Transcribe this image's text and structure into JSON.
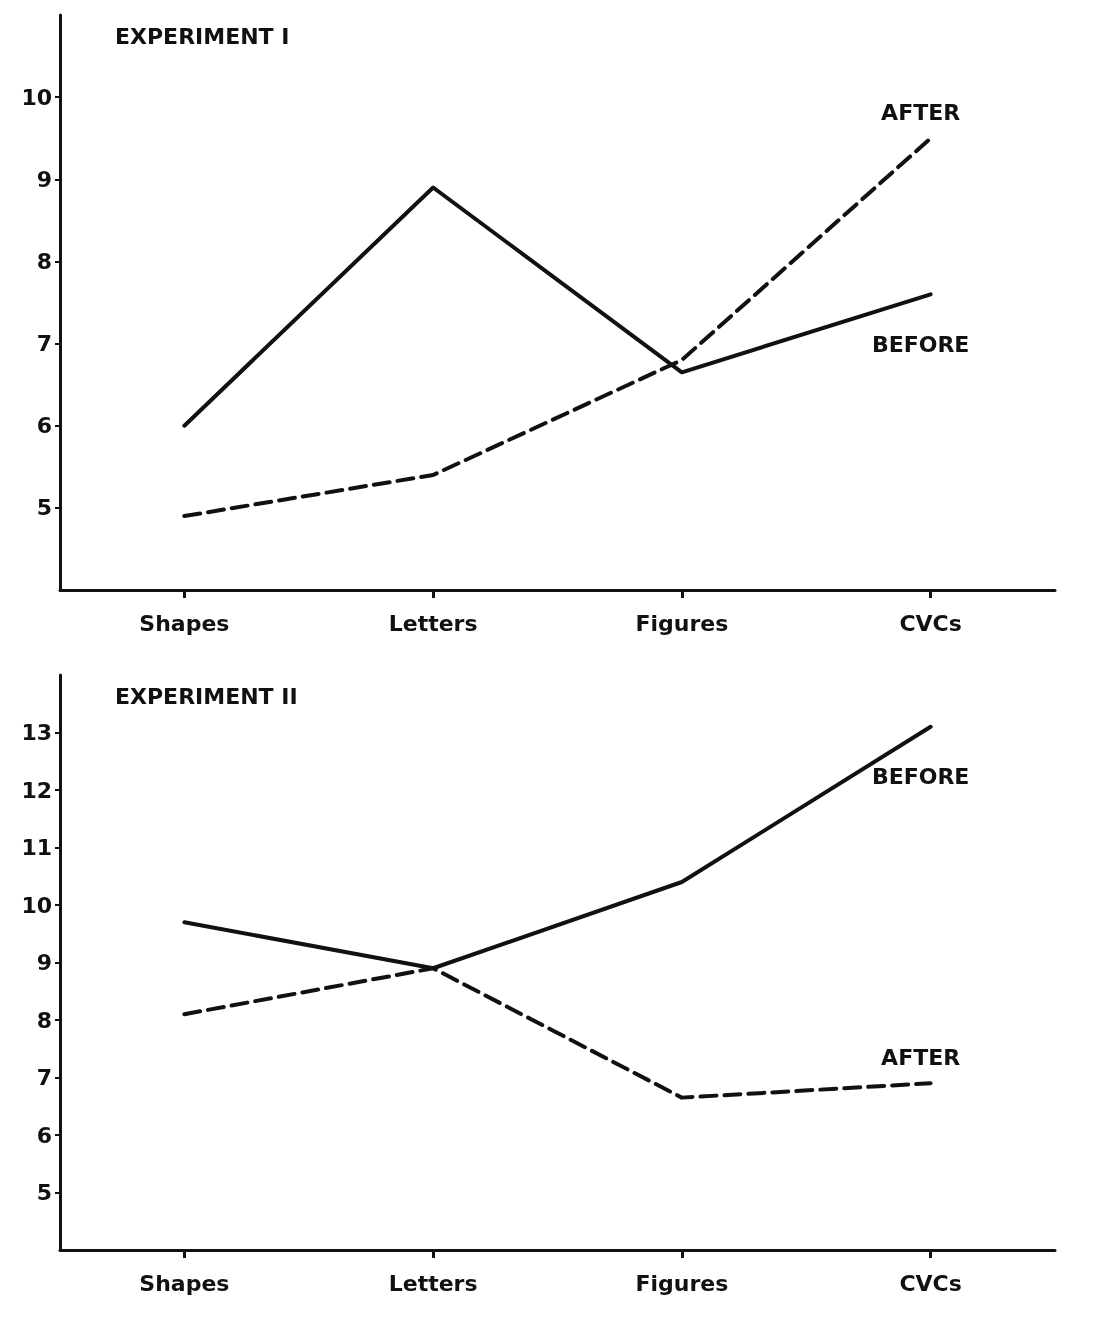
{
  "chart_data": [
    {
      "type": "line",
      "title": "EXPERIMENT I",
      "categories": [
        "Shapes",
        "Letters",
        "Figures",
        "CVCs"
      ],
      "series": [
        {
          "name": "BEFORE",
          "color": "#111111",
          "line_style": "solid",
          "values": [
            6.0,
            8.9,
            6.65,
            7.6
          ]
        },
        {
          "name": "AFTER",
          "color": "#111111",
          "line_style": "dashed",
          "values": [
            4.9,
            5.4,
            6.8,
            9.5
          ]
        }
      ],
      "ylim": [
        4,
        11
      ],
      "yticks": [
        5,
        6,
        7,
        8,
        9,
        10
      ],
      "grid": false,
      "legend": false,
      "marker": "none"
    },
    {
      "type": "line",
      "title": "EXPERIMENT II",
      "categories": [
        "Shapes",
        "Letters",
        "Figures",
        "CVCs"
      ],
      "series": [
        {
          "name": "BEFORE",
          "color": "#111111",
          "line_style": "solid",
          "values": [
            9.7,
            8.9,
            10.4,
            13.1
          ]
        },
        {
          "name": "AFTER",
          "color": "#111111",
          "line_style": "dashed",
          "values": [
            8.1,
            8.9,
            6.65,
            6.9
          ]
        }
      ],
      "ylim": [
        4,
        14
      ],
      "yticks": [
        5,
        6,
        7,
        8,
        9,
        10,
        11,
        12,
        13
      ],
      "grid": false,
      "legend": false,
      "marker": "none"
    }
  ]
}
